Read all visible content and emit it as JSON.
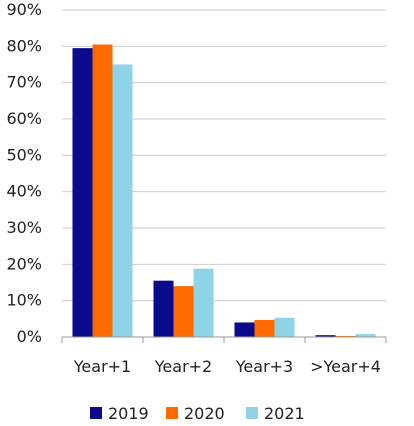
{
  "chart_data": {
    "type": "bar",
    "categories": [
      "Year+1",
      "Year+2",
      "Year+3",
      ">Year+4"
    ],
    "series": [
      {
        "name": "2019",
        "color": "#0a0a8c",
        "values": [
          79.5,
          15.5,
          4.0,
          0.5
        ]
      },
      {
        "name": "2020",
        "color": "#ff6a00",
        "values": [
          80.5,
          14.0,
          4.7,
          0.3
        ]
      },
      {
        "name": "2021",
        "color": "#8ed4e6",
        "values": [
          75.0,
          18.8,
          5.3,
          0.8
        ]
      }
    ],
    "ylim": [
      0,
      90
    ],
    "yticks": [
      "0%",
      "10%",
      "20%",
      "30%",
      "40%",
      "50%",
      "60%",
      "70%",
      "80%",
      "90%"
    ],
    "grid": true,
    "legend_position": "bottom-center",
    "title": "",
    "xlabel": "",
    "ylabel": ""
  }
}
